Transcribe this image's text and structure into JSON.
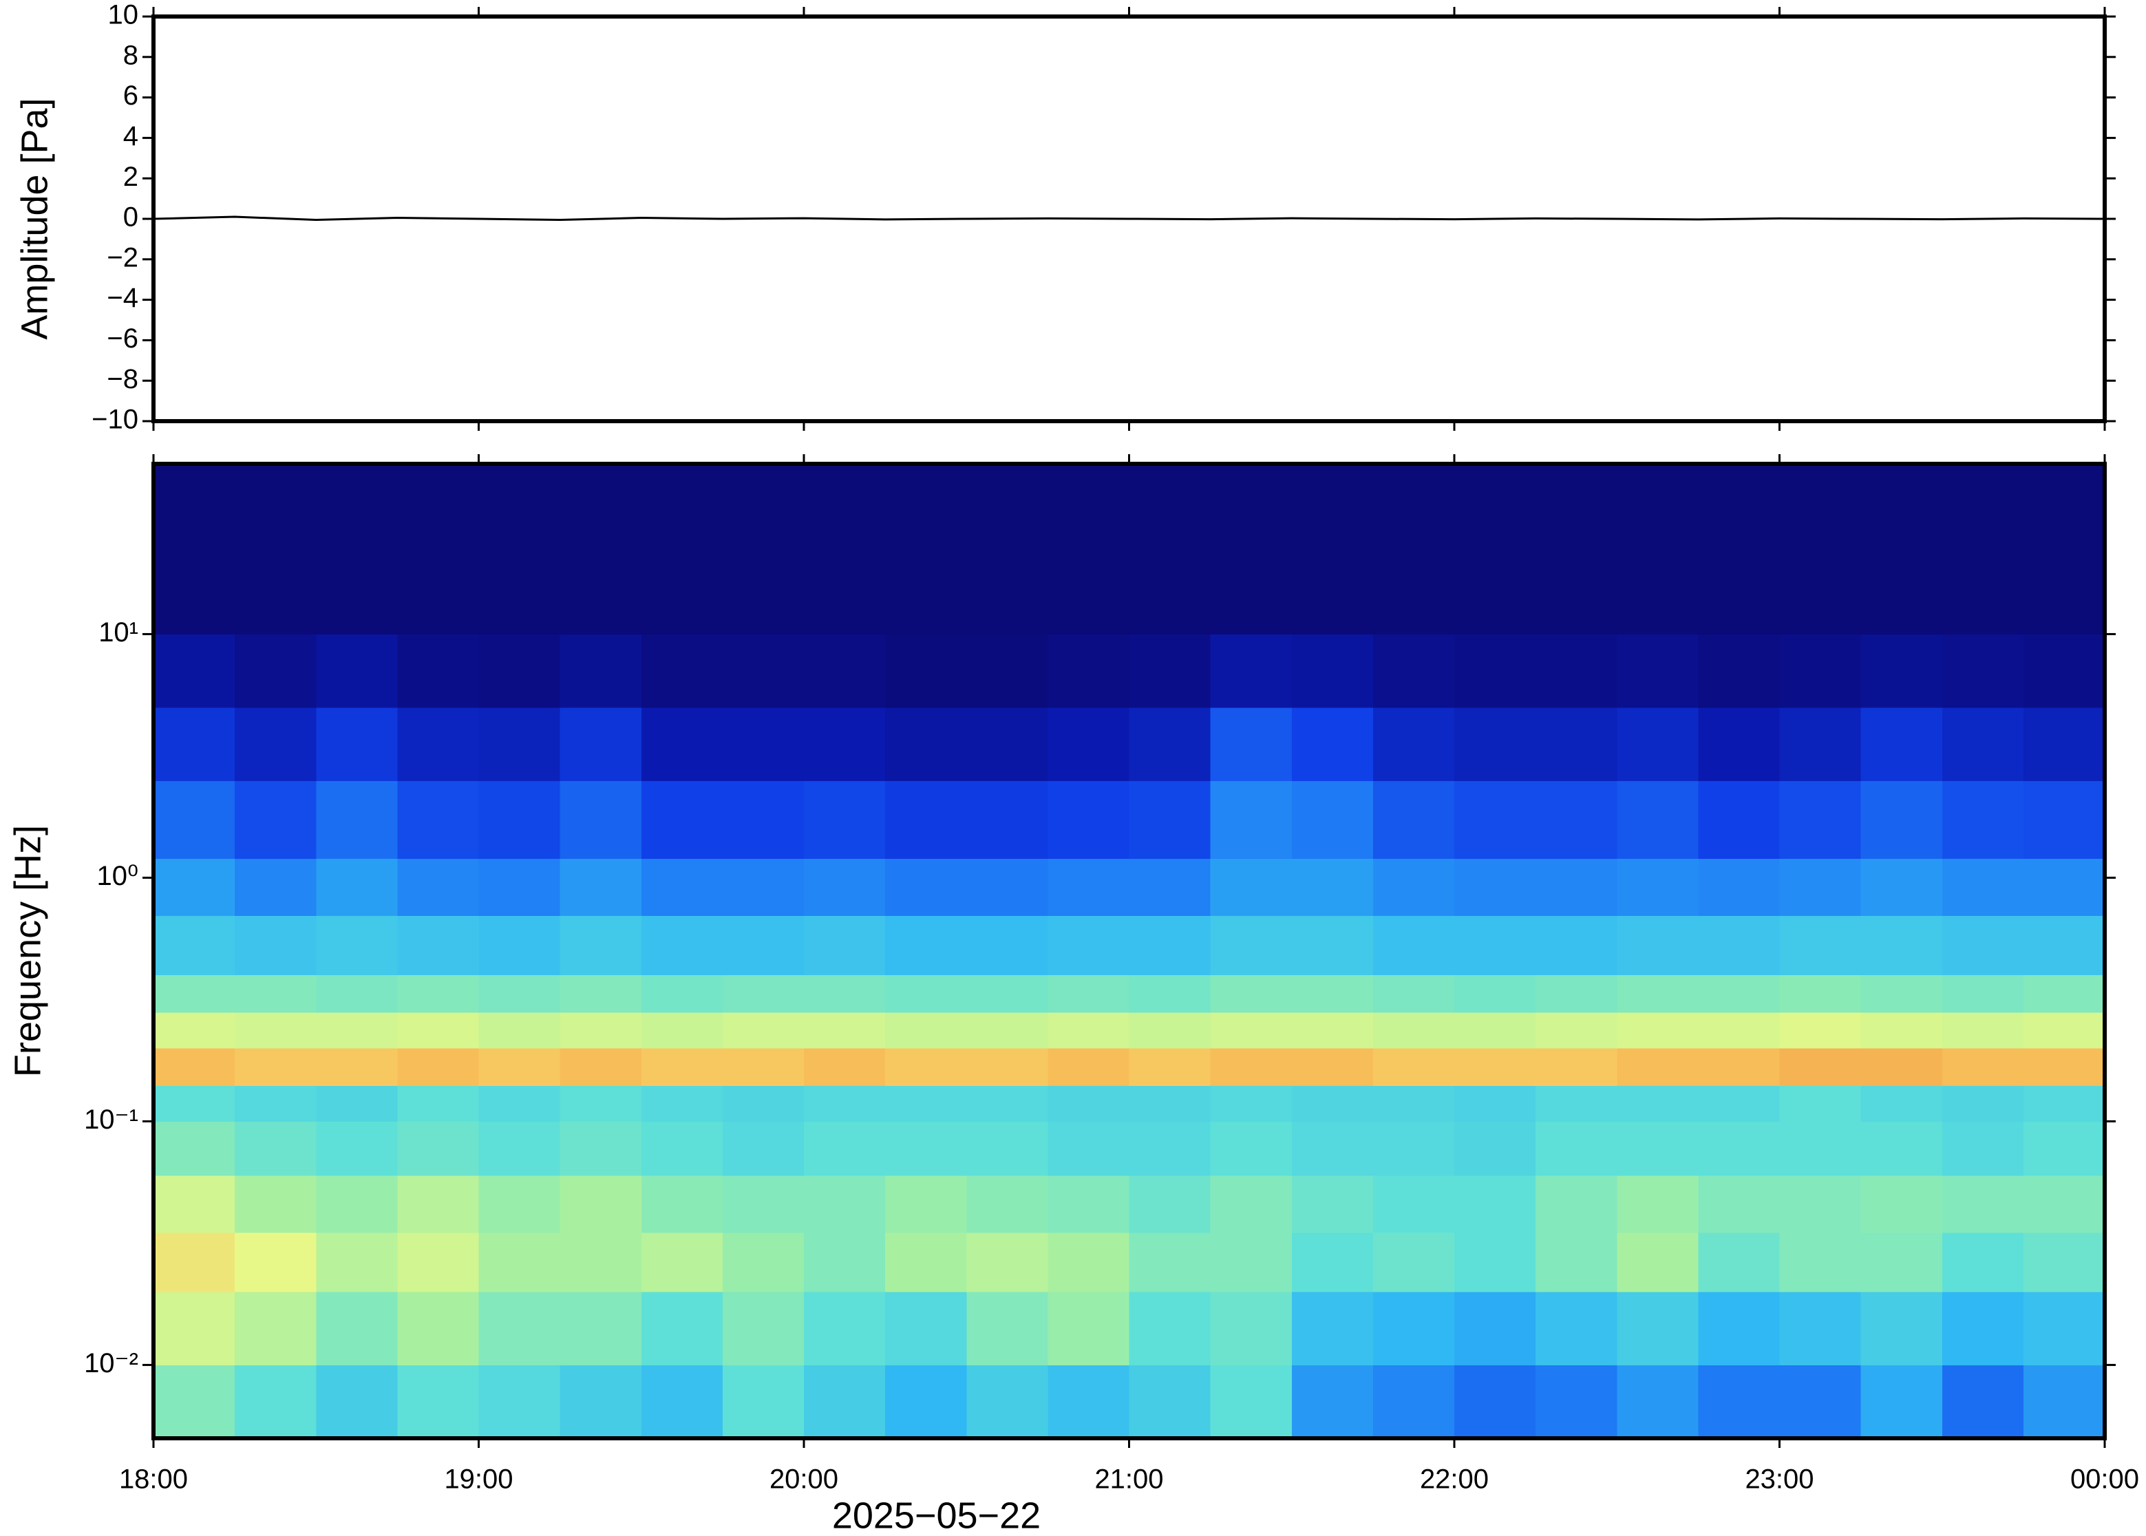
{
  "chart_data": [
    {
      "type": "line",
      "y_label": "Amplitude [Pa]",
      "xlim": [
        18,
        24
      ],
      "ylim": [
        -10,
        10
      ],
      "yticks": [
        {
          "value": -10,
          "label": "−10"
        },
        {
          "value": -8,
          "label": "−8"
        },
        {
          "value": -6,
          "label": "−6"
        },
        {
          "value": -4,
          "label": "−4"
        },
        {
          "value": -2,
          "label": "−2"
        },
        0,
        2,
        4,
        6,
        8,
        10
      ],
      "series": [
        {
          "color": "#000000",
          "x": [
            18,
            18.25,
            18.5,
            18.75,
            19,
            19.25,
            19.5,
            19.75,
            20,
            20.25,
            20.5,
            20.75,
            21,
            21.25,
            21.5,
            21.75,
            22,
            22.25,
            22.5,
            22.75,
            23,
            23.25,
            23.5,
            23.75,
            24
          ],
          "values": [
            0,
            0.1,
            -0.05,
            0.05,
            0,
            -0.05,
            0.05,
            0,
            0.03,
            -0.03,
            0,
            0.02,
            0,
            -0.02,
            0.03,
            0,
            -0.02,
            0.02,
            0,
            -0.03,
            0.02,
            0,
            -0.02,
            0.02,
            0
          ]
        }
      ]
    },
    {
      "type": "heatmap",
      "y_label": "Frequency [Hz]",
      "x_label": "2025−05−22",
      "log_y": true,
      "xlim": [
        18,
        24
      ],
      "ylim": [
        0.005,
        50
      ],
      "xticks": [
        {
          "value": 18,
          "label": "18:00"
        },
        {
          "value": 19,
          "label": "19:00"
        },
        {
          "value": 20,
          "label": "20:00"
        },
        {
          "value": 21,
          "label": "21:00"
        },
        {
          "value": 22,
          "label": "22:00"
        },
        {
          "value": 23,
          "label": "23:00"
        },
        {
          "value": 24,
          "label": "00:00"
        }
      ],
      "yticks": [
        {
          "value": 0.01,
          "label": "10⁻²"
        },
        {
          "value": 0.1,
          "label": "10⁻¹"
        },
        {
          "value": 1,
          "label": "10⁰"
        },
        {
          "value": 10,
          "label": "10¹"
        }
      ],
      "x_bins": [
        18,
        18.25,
        18.5,
        18.75,
        19,
        19.25,
        19.5,
        19.75,
        20,
        20.25,
        20.5,
        20.75,
        21,
        21.25,
        21.5,
        21.75,
        22,
        22.25,
        22.5,
        22.75,
        23,
        23.25,
        23.5,
        23.75,
        24
      ],
      "y_bins": [
        0.005,
        0.01,
        0.02,
        0.035,
        0.06,
        0.1,
        0.14,
        0.2,
        0.28,
        0.4,
        0.7,
        1.2,
        2.5,
        5,
        10,
        50
      ],
      "zlim": [
        0,
        1
      ],
      "colorscale": [
        [
          0,
          "#0a0a78"
        ],
        [
          0.1,
          "#0a1ab0"
        ],
        [
          0.2,
          "#1040e8"
        ],
        [
          0.3,
          "#1e7af5"
        ],
        [
          0.4,
          "#30b8f4"
        ],
        [
          0.5,
          "#5ee0d8"
        ],
        [
          0.6,
          "#a8f0a0"
        ],
        [
          0.68,
          "#e8f888"
        ],
        [
          0.78,
          "#f8c860"
        ],
        [
          0.9,
          "#f08838"
        ],
        [
          1,
          "#d84020"
        ]
      ],
      "values": [
        [
          0.55,
          0.5,
          0.45,
          0.5,
          0.48,
          0.45,
          0.42,
          0.5,
          0.45,
          0.4,
          0.45,
          0.42,
          0.45,
          0.5,
          0.35,
          0.32,
          0.28,
          0.3,
          0.35,
          0.3,
          0.3,
          0.38,
          0.28,
          0.35
        ],
        [
          0.65,
          0.62,
          0.55,
          0.6,
          0.55,
          0.55,
          0.5,
          0.55,
          0.5,
          0.48,
          0.55,
          0.58,
          0.5,
          0.52,
          0.42,
          0.4,
          0.38,
          0.42,
          0.45,
          0.4,
          0.42,
          0.45,
          0.4,
          0.42
        ],
        [
          0.72,
          0.68,
          0.62,
          0.65,
          0.6,
          0.6,
          0.62,
          0.58,
          0.55,
          0.6,
          0.62,
          0.6,
          0.55,
          0.55,
          0.5,
          0.52,
          0.5,
          0.55,
          0.6,
          0.52,
          0.55,
          0.55,
          0.5,
          0.52
        ],
        [
          0.65,
          0.6,
          0.58,
          0.62,
          0.58,
          0.6,
          0.56,
          0.55,
          0.55,
          0.58,
          0.56,
          0.55,
          0.52,
          0.55,
          0.52,
          0.5,
          0.5,
          0.55,
          0.58,
          0.55,
          0.55,
          0.56,
          0.55,
          0.55
        ],
        [
          0.55,
          0.52,
          0.5,
          0.52,
          0.5,
          0.52,
          0.5,
          0.48,
          0.5,
          0.5,
          0.5,
          0.48,
          0.48,
          0.5,
          0.48,
          0.48,
          0.47,
          0.5,
          0.5,
          0.5,
          0.5,
          0.5,
          0.48,
          0.5
        ],
        [
          0.5,
          0.48,
          0.47,
          0.5,
          0.48,
          0.5,
          0.48,
          0.47,
          0.48,
          0.48,
          0.48,
          0.47,
          0.47,
          0.48,
          0.47,
          0.47,
          0.46,
          0.48,
          0.48,
          0.48,
          0.5,
          0.48,
          0.47,
          0.48
        ],
        [
          0.8,
          0.78,
          0.78,
          0.8,
          0.78,
          0.8,
          0.78,
          0.78,
          0.8,
          0.78,
          0.78,
          0.8,
          0.78,
          0.8,
          0.8,
          0.78,
          0.78,
          0.78,
          0.8,
          0.8,
          0.82,
          0.82,
          0.8,
          0.8
        ],
        [
          0.66,
          0.65,
          0.65,
          0.66,
          0.64,
          0.65,
          0.64,
          0.65,
          0.65,
          0.64,
          0.64,
          0.65,
          0.64,
          0.65,
          0.65,
          0.64,
          0.64,
          0.65,
          0.66,
          0.66,
          0.67,
          0.66,
          0.65,
          0.66
        ],
        [
          0.55,
          0.55,
          0.54,
          0.55,
          0.54,
          0.55,
          0.53,
          0.54,
          0.54,
          0.53,
          0.53,
          0.54,
          0.53,
          0.55,
          0.55,
          0.54,
          0.53,
          0.54,
          0.55,
          0.55,
          0.56,
          0.55,
          0.54,
          0.55
        ],
        [
          0.44,
          0.43,
          0.44,
          0.43,
          0.42,
          0.44,
          0.42,
          0.42,
          0.43,
          0.41,
          0.41,
          0.42,
          0.42,
          0.44,
          0.44,
          0.42,
          0.42,
          0.42,
          0.43,
          0.43,
          0.44,
          0.44,
          0.43,
          0.43
        ],
        [
          0.36,
          0.32,
          0.36,
          0.32,
          0.31,
          0.35,
          0.31,
          0.31,
          0.32,
          0.3,
          0.3,
          0.31,
          0.31,
          0.36,
          0.36,
          0.33,
          0.32,
          0.32,
          0.33,
          0.32,
          0.33,
          0.35,
          0.33,
          0.33
        ],
        [
          0.27,
          0.22,
          0.28,
          0.22,
          0.21,
          0.26,
          0.2,
          0.2,
          0.21,
          0.19,
          0.19,
          0.2,
          0.21,
          0.32,
          0.3,
          0.24,
          0.22,
          0.22,
          0.24,
          0.2,
          0.22,
          0.26,
          0.23,
          0.22
        ],
        [
          0.17,
          0.13,
          0.18,
          0.13,
          0.12,
          0.17,
          0.1,
          0.1,
          0.1,
          0.08,
          0.08,
          0.1,
          0.12,
          0.24,
          0.2,
          0.14,
          0.12,
          0.12,
          0.14,
          0.1,
          0.12,
          0.17,
          0.14,
          0.12
        ],
        [
          0.07,
          0.04,
          0.07,
          0.03,
          0.02,
          0.05,
          0.02,
          0.02,
          0.02,
          0.01,
          0.01,
          0.02,
          0.03,
          0.08,
          0.07,
          0.04,
          0.03,
          0.03,
          0.04,
          0.02,
          0.03,
          0.05,
          0.04,
          0.03
        ],
        [
          0,
          0,
          0,
          0,
          0,
          0,
          0,
          0,
          0,
          0,
          0,
          0,
          0,
          0,
          0,
          0,
          0,
          0,
          0,
          0,
          0,
          0,
          0,
          0
        ]
      ]
    }
  ]
}
